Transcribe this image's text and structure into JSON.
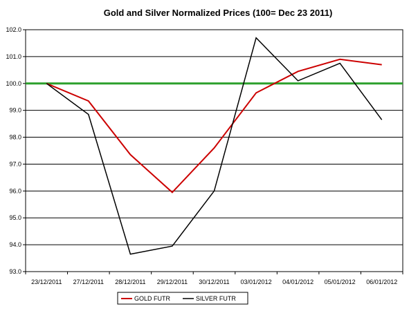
{
  "chart_data": {
    "type": "line",
    "title": "Gold and Silver Normalized Prices  (100= Dec 23 2011)",
    "xlabel": "",
    "ylabel": "",
    "categories": [
      "23/12/2011",
      "27/12/2011",
      "28/12/2011",
      "29/12/2011",
      "30/12/2011",
      "03/01/2012",
      "04/01/2012",
      "05/01/2012",
      "06/01/2012"
    ],
    "yticks": [
      "93.0",
      "94.0",
      "95.0",
      "96.0",
      "97.0",
      "98.0",
      "99.0",
      "100.0",
      "101.0",
      "102.0"
    ],
    "ylim": [
      93.0,
      102.0
    ],
    "grid": true,
    "legend": "bottom",
    "reference_line": {
      "value": 100.0,
      "color": "#2ca02c"
    },
    "series": [
      {
        "name": "GOLD  FUTR",
        "color": "#cc0000",
        "values": [
          100.0,
          99.35,
          97.35,
          95.95,
          97.6,
          99.65,
          100.45,
          100.9,
          100.7
        ]
      },
      {
        "name": "SILVER  FUTR",
        "color": "#000000",
        "values": [
          100.0,
          98.85,
          93.65,
          93.95,
          96.0,
          101.7,
          100.1,
          100.75,
          98.65
        ]
      }
    ]
  }
}
